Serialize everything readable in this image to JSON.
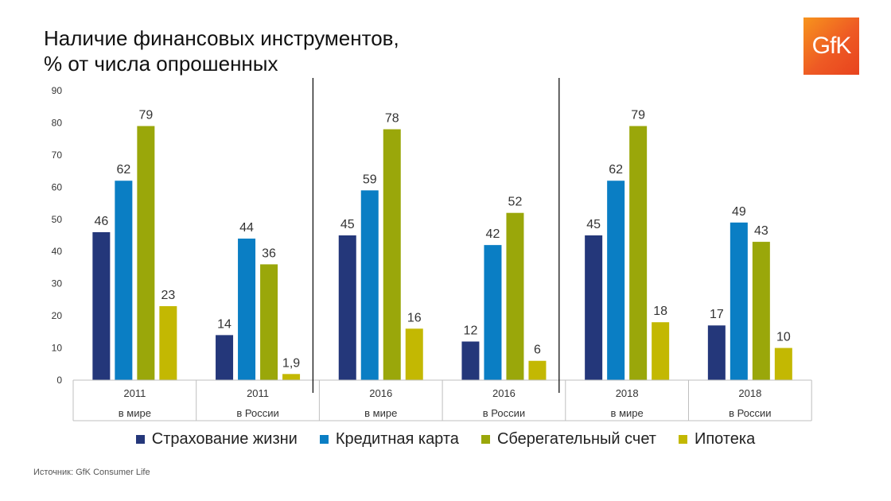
{
  "title_lines": [
    "Наличие финансовых инструментов,",
    "% от числа опрошенных"
  ],
  "logo_text": "GfK",
  "source": "Источник: GfK Consumer Life",
  "colors": {
    "Страхование жизни": "#24377a",
    "Кредитная карта": "#0a7ec4",
    "Сберегательный счет": "#9aa70a",
    "Ипотека": "#c3b802",
    "logo": "#ee5a24"
  },
  "chart_data": {
    "type": "bar",
    "ylim": [
      0,
      90
    ],
    "yticks": [
      0,
      10,
      20,
      30,
      40,
      50,
      60,
      70,
      80,
      90
    ],
    "grid": false,
    "legend_position": "bottom",
    "categories": [
      {
        "year": "2011",
        "region": "в мире"
      },
      {
        "year": "2011",
        "region": "в России"
      },
      {
        "year": "2016",
        "region": "в мире"
      },
      {
        "year": "2016",
        "region": "в России"
      },
      {
        "year": "2018",
        "region": "в мире"
      },
      {
        "year": "2018",
        "region": "в России"
      }
    ],
    "series": [
      {
        "name": "Страхование жизни",
        "values": [
          46,
          14,
          45,
          12,
          45,
          17
        ],
        "labels": [
          "46",
          "14",
          "45",
          "12",
          "45",
          "17"
        ]
      },
      {
        "name": "Кредитная карта",
        "values": [
          62,
          44,
          59,
          42,
          62,
          49
        ],
        "labels": [
          "62",
          "44",
          "59",
          "42",
          "62",
          "49"
        ]
      },
      {
        "name": "Сберегательный счет",
        "values": [
          79,
          36,
          78,
          52,
          79,
          43
        ],
        "labels": [
          "79",
          "36",
          "78",
          "52",
          "79",
          "43"
        ]
      },
      {
        "name": "Ипотека",
        "values": [
          23,
          1.9,
          16,
          6,
          18,
          10
        ],
        "labels": [
          "23",
          "1,9",
          "16",
          "6",
          "18",
          "10"
        ]
      }
    ]
  }
}
